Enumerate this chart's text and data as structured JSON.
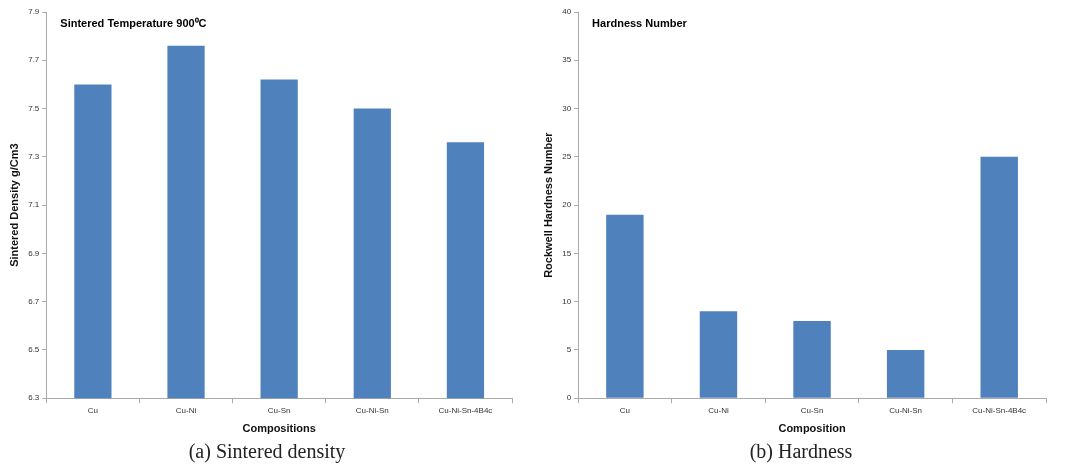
{
  "chart_data": [
    {
      "type": "bar",
      "title": "Sintered Temperature 900⁰C",
      "xlabel": "Compositions",
      "ylabel": "Sintered Density g/Cm3",
      "categories": [
        "Cu",
        "Cu-Ni",
        "Cu-Sn",
        "Cu-Ni-Sn",
        "Cu-Ni-Sn-4B4c"
      ],
      "values": [
        7.6,
        7.76,
        7.62,
        7.5,
        7.36
      ],
      "color": "#4f81bd",
      "ylim": [
        6.3,
        7.9
      ],
      "yticks": [
        6.3,
        6.5,
        6.7,
        6.9,
        7.1,
        7.3,
        7.5,
        7.7,
        7.9
      ],
      "grid": false,
      "legend": false,
      "annotations": [
        "(a) Sintered density"
      ]
    },
    {
      "type": "bar",
      "title": "Hardness Number",
      "xlabel": "Composition",
      "ylabel": "Rockwell Hardness Number",
      "categories": [
        "Cu",
        "Cu-Ni",
        "Cu-Sn",
        "Cu-Ni-Sn",
        "Cu-Ni-Sn-4B4c"
      ],
      "values": [
        19,
        9,
        8,
        5,
        25
      ],
      "color": "#4f81bd",
      "ylim": [
        0,
        40
      ],
      "yticks": [
        0,
        5,
        10,
        15,
        20,
        25,
        30,
        35,
        40
      ],
      "grid": false,
      "legend": false,
      "annotations": [
        "(b) Hardness"
      ]
    }
  ]
}
